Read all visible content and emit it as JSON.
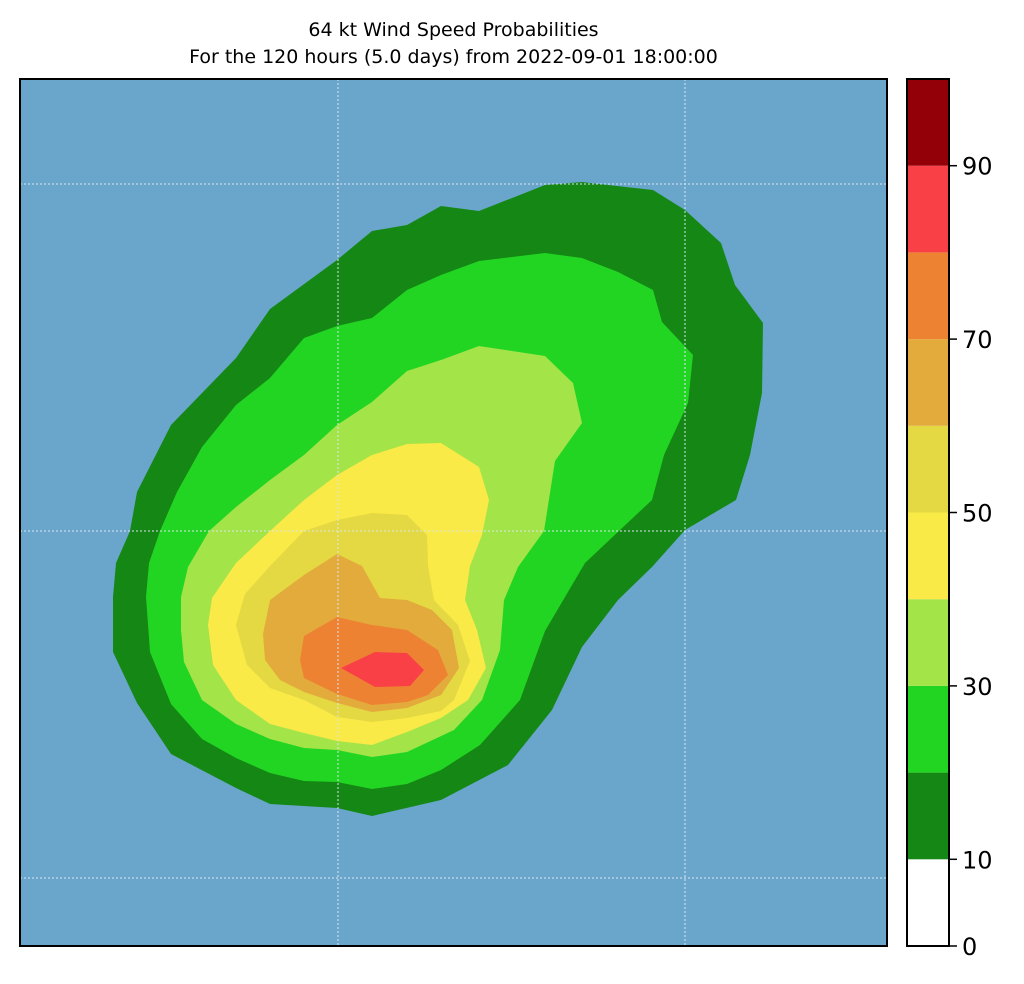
{
  "title": "64 kt Wind Speed Probabilities",
  "subtitle": "For the 120 hours (5.0 days) from 2022-09-01 18:00:00",
  "colors": {
    "ocean": "#6aa6cc",
    "gridline": "#d9e6ee"
  },
  "contour_levels": [
    {
      "range": "0-10",
      "color": "#ffffff"
    },
    {
      "range": "10-20",
      "color": "#158715"
    },
    {
      "range": "20-30",
      "color": "#22d522"
    },
    {
      "range": "30-40",
      "color": "#a3e448"
    },
    {
      "range": "40-50",
      "color": "#f9ea47"
    },
    {
      "range": "50-60",
      "color": "#e4d942"
    },
    {
      "range": "60-70",
      "color": "#e3ab3c"
    },
    {
      "range": "70-80",
      "color": "#ee8233"
    },
    {
      "range": "80-90",
      "color": "#f94046"
    },
    {
      "range": "90-100",
      "color": "#930007"
    }
  ],
  "colorbar": {
    "min": 0,
    "max": 100,
    "step": 10,
    "top_color": "#8028d6",
    "tick_labels": [
      "0",
      "10",
      "30",
      "50",
      "70",
      "90"
    ],
    "tick_values": [
      0,
      10,
      30,
      50,
      70,
      90
    ]
  }
}
